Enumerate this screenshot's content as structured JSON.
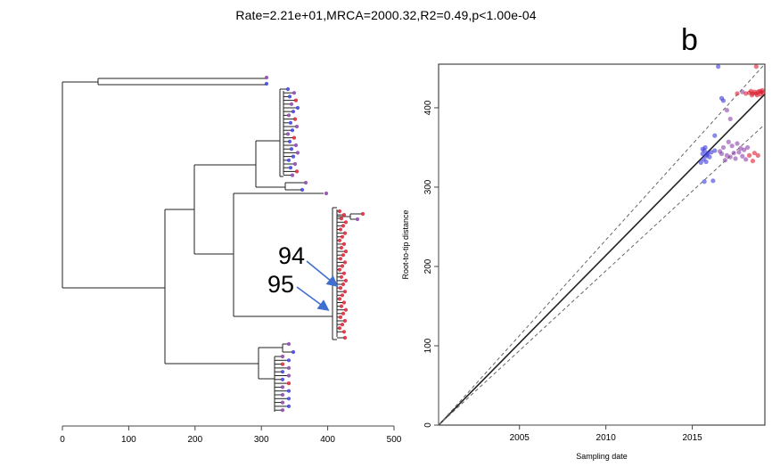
{
  "title": "Rate=2.21e+01,MRCA=2000.32,R2=0.49,p<1.00e-04",
  "panel_letter": "b",
  "annotations": [
    "94",
    "95"
  ],
  "colors": {
    "blue": "#3b3bdc",
    "red": "#d81e2e",
    "purple": "#8a3fa8",
    "line": "#222222",
    "dashed": "#666666"
  },
  "chart_data": [
    {
      "type": "tree",
      "xaxis": {
        "ticks": [
          "0",
          "100",
          "200",
          "300",
          "400",
          "500"
        ],
        "range": [
          0,
          500
        ]
      },
      "grid": false
    },
    {
      "type": "scatter",
      "xlabel": "Sampling date",
      "ylabel": "Root-to-tip distance",
      "xlim": [
        2000.32,
        2019.2
      ],
      "ylim": [
        0,
        455
      ],
      "xticks": [
        "2005",
        "2010",
        "2015"
      ],
      "yticks": [
        "0",
        "100",
        "200",
        "300",
        "400"
      ],
      "grid": false,
      "regression": {
        "slope": 22.1,
        "intercept_x": 2000.32,
        "band": 38
      },
      "series": [
        {
          "color": "blue",
          "points": [
            [
              2015.6,
              342
            ],
            [
              2015.7,
              346
            ],
            [
              2015.8,
              339
            ],
            [
              2015.65,
              335
            ],
            [
              2015.9,
              343
            ],
            [
              2016.0,
              338
            ],
            [
              2015.75,
              350
            ],
            [
              2015.6,
              348
            ],
            [
              2016.1,
              344
            ],
            [
              2015.8,
              332
            ],
            [
              2016.3,
              346
            ],
            [
              2015.5,
              331
            ],
            [
              2016.2,
              308
            ],
            [
              2015.7,
              307
            ],
            [
              2016.3,
              365
            ],
            [
              2016.5,
              452
            ],
            [
              2016.7,
              412
            ],
            [
              2016.8,
              409
            ],
            [
              2015.85,
              341
            ]
          ]
        },
        {
          "color": "purple",
          "points": [
            [
              2016.6,
              345
            ],
            [
              2016.8,
              350
            ],
            [
              2017.0,
              340
            ],
            [
              2017.1,
              357
            ],
            [
              2017.2,
              338
            ],
            [
              2017.3,
              352
            ],
            [
              2017.4,
              343
            ],
            [
              2017.5,
              336
            ],
            [
              2017.6,
              355
            ],
            [
              2017.7,
              344
            ],
            [
              2017.8,
              349
            ],
            [
              2017.9,
              339
            ],
            [
              2018.0,
              347
            ],
            [
              2018.1,
              335
            ],
            [
              2016.9,
              334
            ],
            [
              2017.0,
              397
            ],
            [
              2017.2,
              386
            ],
            [
              2017.9,
              420
            ],
            [
              2018.2,
              350
            ],
            [
              2016.7,
              342
            ]
          ]
        },
        {
          "color": "red",
          "points": [
            [
              2018.3,
              340
            ],
            [
              2018.5,
              333
            ],
            [
              2018.6,
              343
            ],
            [
              2018.8,
              340
            ],
            [
              2017.6,
              418
            ],
            [
              2018.1,
              418
            ],
            [
              2018.3,
              419
            ],
            [
              2018.4,
              421
            ],
            [
              2018.5,
              418
            ],
            [
              2018.6,
              420
            ],
            [
              2018.7,
              418
            ],
            [
              2018.8,
              420
            ],
            [
              2018.9,
              421
            ],
            [
              2019.0,
              420
            ],
            [
              2019.05,
              422
            ],
            [
              2019.1,
              419
            ],
            [
              2018.95,
              417
            ],
            [
              2018.7,
              452
            ],
            [
              2018.45,
              416
            ],
            [
              2018.75,
              416
            ]
          ]
        }
      ]
    }
  ]
}
